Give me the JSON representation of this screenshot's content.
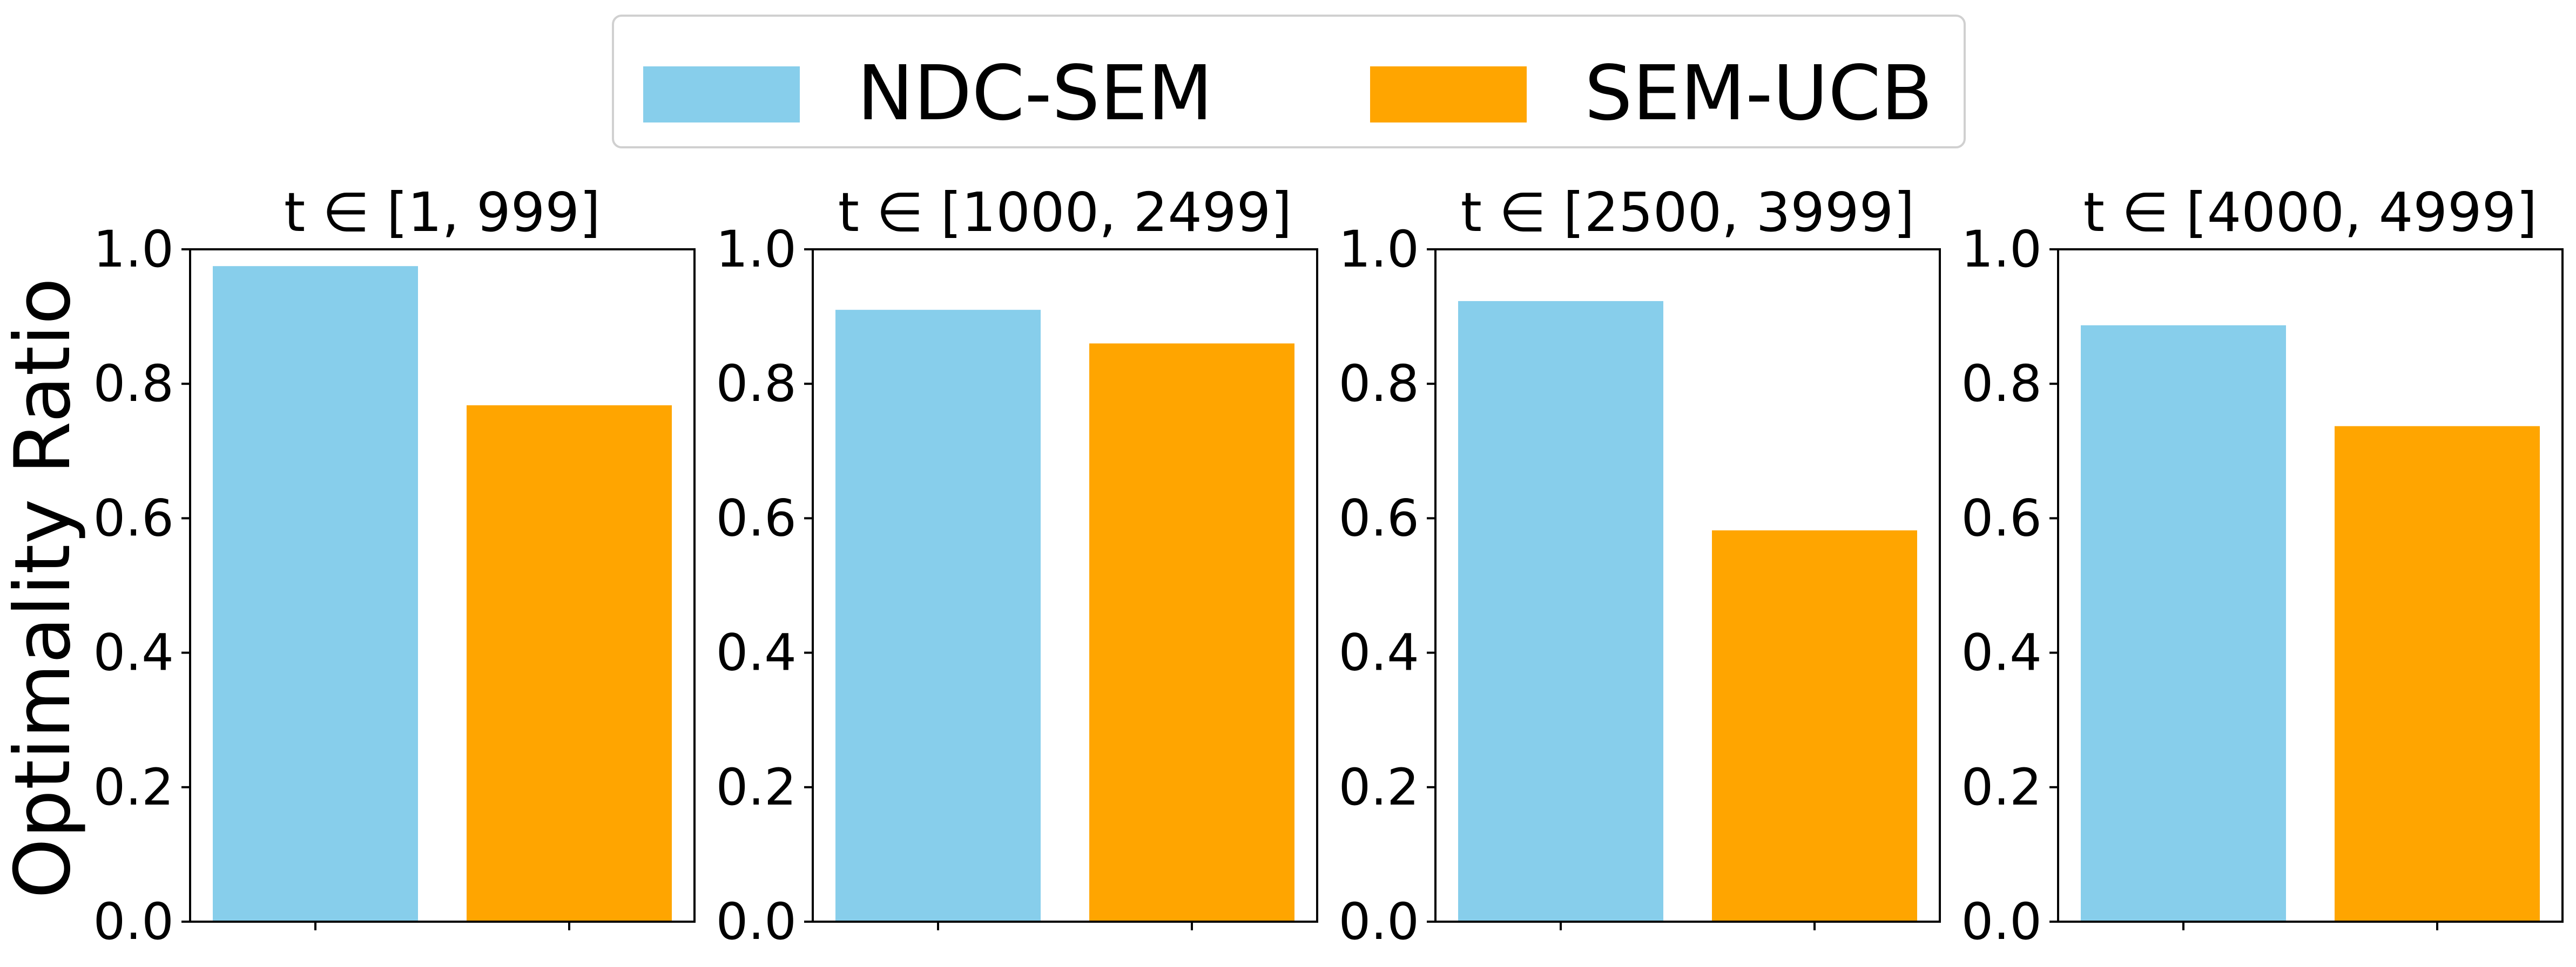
{
  "chart_data": {
    "type": "bar",
    "ylabel": "Optimality Ratio",
    "ylim": [
      0,
      1.0
    ],
    "yticks": [
      "0.0",
      "0.2",
      "0.4",
      "0.6",
      "0.8",
      "1.0"
    ],
    "legend": {
      "placement": "top-center",
      "entries": [
        {
          "name": "NDC-SEM",
          "color": "#87CEEB"
        },
        {
          "name": "SEM-UCB",
          "color": "#FFA500"
        }
      ]
    },
    "panels": [
      {
        "title": "t ∈ [1, 999]",
        "values": [
          0.975,
          0.768
        ]
      },
      {
        "title": "t ∈ [1000, 2499]",
        "values": [
          0.91,
          0.86
        ]
      },
      {
        "title": "t ∈ [2500, 3999]",
        "values": [
          0.923,
          0.582
        ]
      },
      {
        "title": "t ∈ [4000, 4999]",
        "values": [
          0.887,
          0.737
        ]
      }
    ]
  }
}
